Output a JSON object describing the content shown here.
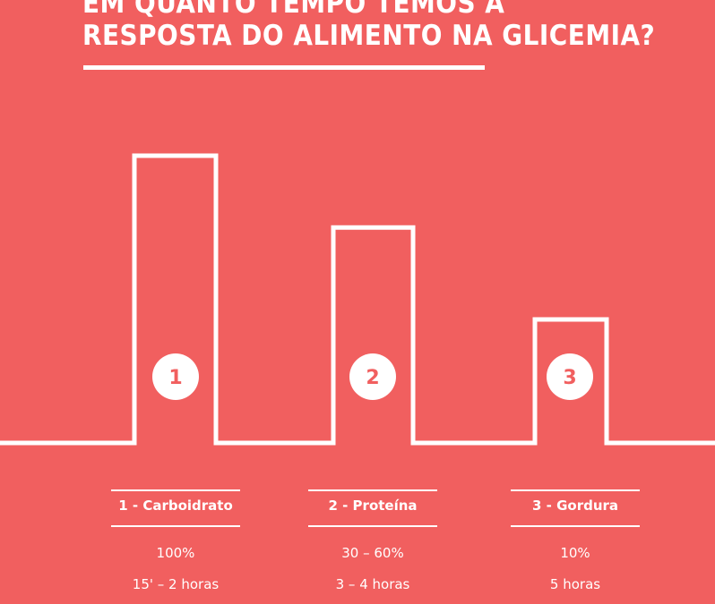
{
  "title_lines": [
    "EM QUANTO TEMPO TEMOS A",
    "RESPOSTA DO ALIMENTO NA GLICEMIA?"
  ],
  "chart_data": {
    "type": "bar",
    "title": "EM QUANTO TEMPO TEMOS A RESPOSTA DO ALIMENTO NA GLICEMIA?",
    "categories": [
      "1 - Carboidrato",
      "2 - Proteína",
      "3 - Gordura"
    ],
    "markers": [
      "1",
      "2",
      "3"
    ],
    "percentages": [
      "100%",
      "30 – 60%",
      "10%"
    ],
    "durations": [
      "15' – 2 horas",
      "3 – 4 horas",
      "5 horas"
    ],
    "values": [
      100,
      75,
      43
    ],
    "ylim": [
      0,
      100
    ],
    "grid": false,
    "colors": {
      "background": "#F15F5F",
      "line": "#FFFFFF",
      "marker_text": "#F15F5F"
    }
  }
}
